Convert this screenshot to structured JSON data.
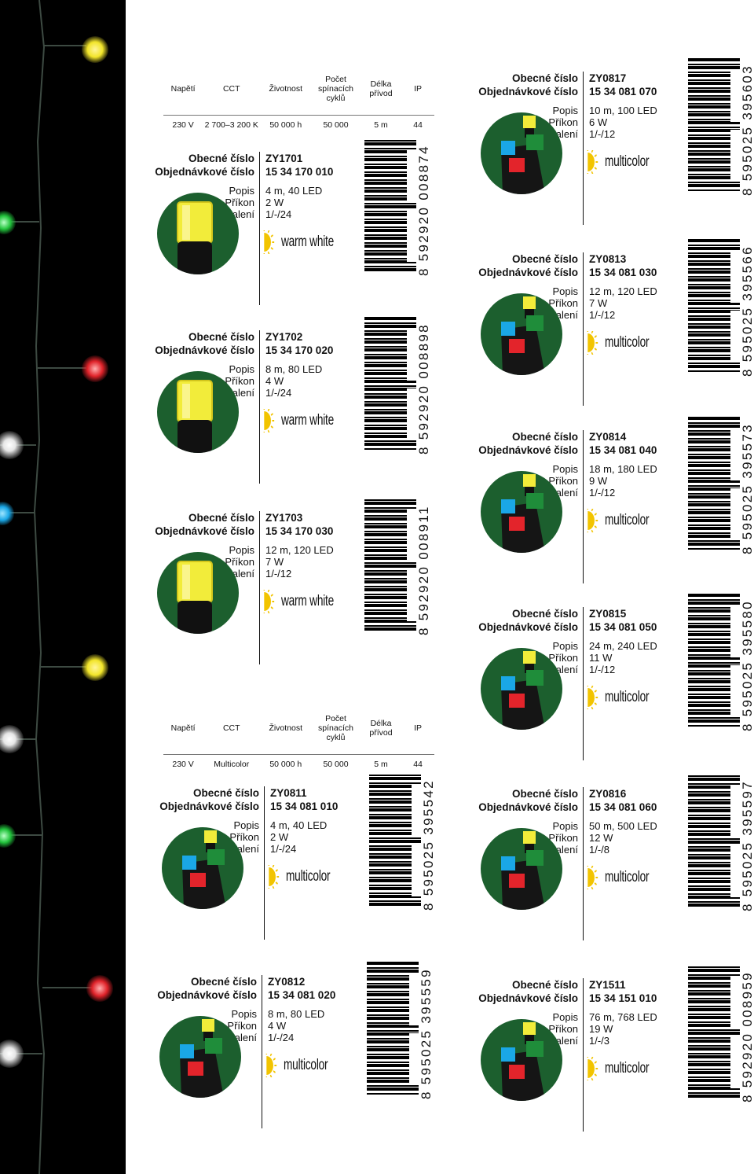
{
  "labels": {
    "obecne": "Obecné číslo",
    "objednavkove": "Objednávkové číslo",
    "popis": "Popis",
    "prikon": "Příkon",
    "baleni": "Balení"
  },
  "tables": [
    {
      "headers": [
        "Napětí",
        "CCT",
        "Životnost",
        "Počet spínacích cyklů",
        "Délka přívod",
        "IP"
      ],
      "values": [
        "230 V",
        "2 700–3 200 K",
        "50 000 h",
        "50 000",
        "5 m",
        "44"
      ]
    },
    {
      "headers": [
        "Napětí",
        "CCT",
        "Životnost",
        "Počet spínacích cyklů",
        "Délka přívod",
        "IP"
      ],
      "values": [
        "230 V",
        "Multicolor",
        "50 000 h",
        "50 000",
        "5 m",
        "44"
      ]
    }
  ],
  "products": [
    {
      "code": "ZY1701",
      "order": "15 34 170 010",
      "desc": "4 m, 40 LED",
      "power": "2 W",
      "pack": "1/-/24",
      "color": "warm white",
      "barcode": "8 592920 008874"
    },
    {
      "code": "ZY1702",
      "order": "15 34 170 020",
      "desc": "8 m, 80 LED",
      "power": "4 W",
      "pack": "1/-/24",
      "color": "warm white",
      "barcode": "8 592920 008898"
    },
    {
      "code": "ZY1703",
      "order": "15 34 170 030",
      "desc": "12 m, 120 LED",
      "power": "7 W",
      "pack": "1/-/12",
      "color": "warm white",
      "barcode": "8 592920 008911"
    },
    {
      "code": "ZY0811",
      "order": "15 34 081 010",
      "desc": "4 m, 40 LED",
      "power": "2 W",
      "pack": "1/-/24",
      "color": "multicolor",
      "barcode": "8 595025 395542"
    },
    {
      "code": "ZY0812",
      "order": "15 34 081 020",
      "desc": "8 m, 80 LED",
      "power": "4 W",
      "pack": "1/-/24",
      "color": "multicolor",
      "barcode": "8 595025 395559"
    },
    {
      "code": "ZY0817",
      "order": "15 34 081 070",
      "desc": "10 m, 100 LED",
      "power": "6 W",
      "pack": "1/-/12",
      "color": "multicolor",
      "barcode": "8 595025 395603"
    },
    {
      "code": "ZY0813",
      "order": "15 34 081 030",
      "desc": "12 m, 120 LED",
      "power": "7 W",
      "pack": "1/-/12",
      "color": "multicolor",
      "barcode": "8 595025 395566"
    },
    {
      "code": "ZY0814",
      "order": "15 34 081 040",
      "desc": "18 m, 180 LED",
      "power": "9 W",
      "pack": "1/-/12",
      "color": "multicolor",
      "barcode": "8 595025 395573"
    },
    {
      "code": "ZY0815",
      "order": "15 34 081 050",
      "desc": "24 m, 240 LED",
      "power": "11 W",
      "pack": "1/-/12",
      "color": "multicolor",
      "barcode": "8 595025 395580"
    },
    {
      "code": "ZY0816",
      "order": "15 34 081 060",
      "desc": "50 m, 500 LED",
      "power": "12 W",
      "pack": "1/-/8",
      "color": "multicolor",
      "barcode": "8 595025 395597"
    },
    {
      "code": "ZY1511",
      "order": "15 34 151 010",
      "desc": "76 m, 768 LED",
      "power": "19 W",
      "pack": "1/-/3",
      "color": "multicolor",
      "barcode": "8 592920 008959"
    }
  ],
  "colors": {
    "thumb_green": "#1c5f2e",
    "warm_yellow": "#f2ec3a",
    "blue": "#1aa7e6",
    "red": "#e3242b",
    "sun": "#f2c400"
  }
}
